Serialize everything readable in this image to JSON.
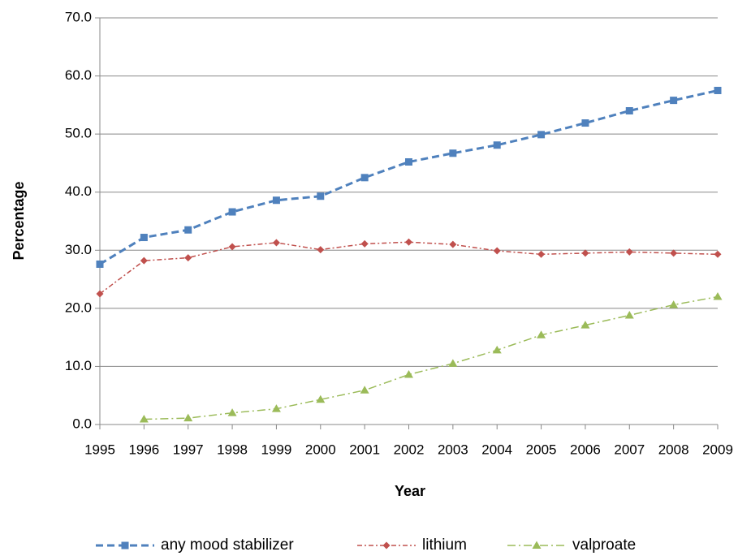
{
  "chart_data": {
    "type": "line",
    "x_label": "Year",
    "y_label": "Percentage",
    "categories": [
      "1995",
      "1996",
      "1997",
      "1998",
      "1999",
      "2000",
      "2001",
      "2002",
      "2003",
      "2004",
      "2005",
      "2006",
      "2007",
      "2008",
      "2009"
    ],
    "series": [
      {
        "name": "any mood stabilizer",
        "color": "#4f81bd",
        "dash": "9,5",
        "marker": "square",
        "width": 3,
        "values": [
          27.6,
          32.2,
          33.5,
          36.6,
          38.6,
          39.3,
          42.5,
          45.2,
          46.7,
          48.1,
          49.9,
          51.9,
          54.0,
          55.8,
          57.5
        ]
      },
      {
        "name": "lithium",
        "color": "#c0504d",
        "dash": "6,3,2,3",
        "marker": "diamond",
        "width": 1.5,
        "values": [
          22.5,
          28.2,
          28.7,
          30.6,
          31.3,
          30.1,
          31.1,
          31.4,
          31.0,
          29.9,
          29.3,
          29.5,
          29.7,
          29.5,
          29.3
        ]
      },
      {
        "name": "valproate",
        "color": "#9bbb59",
        "dash": "10,4,2,4",
        "marker": "triangle",
        "width": 1.5,
        "values": [
          null,
          0.9,
          1.1,
          2.0,
          2.7,
          4.3,
          5.9,
          8.6,
          10.5,
          12.8,
          15.4,
          17.1,
          18.8,
          20.6,
          22.0
        ]
      }
    ],
    "ylim": [
      0,
      70
    ],
    "yticks": [
      {
        "value": 0,
        "label": "0.0"
      },
      {
        "value": 10,
        "label": "10.0"
      },
      {
        "value": 20,
        "label": "20.0"
      },
      {
        "value": 30,
        "label": "30.0"
      },
      {
        "value": 40,
        "label": "40.0"
      },
      {
        "value": 50,
        "label": "50.0"
      },
      {
        "value": 60,
        "label": "60.0"
      },
      {
        "value": 70,
        "label": "70.0"
      }
    ],
    "grid": true,
    "legend": "bottom"
  }
}
